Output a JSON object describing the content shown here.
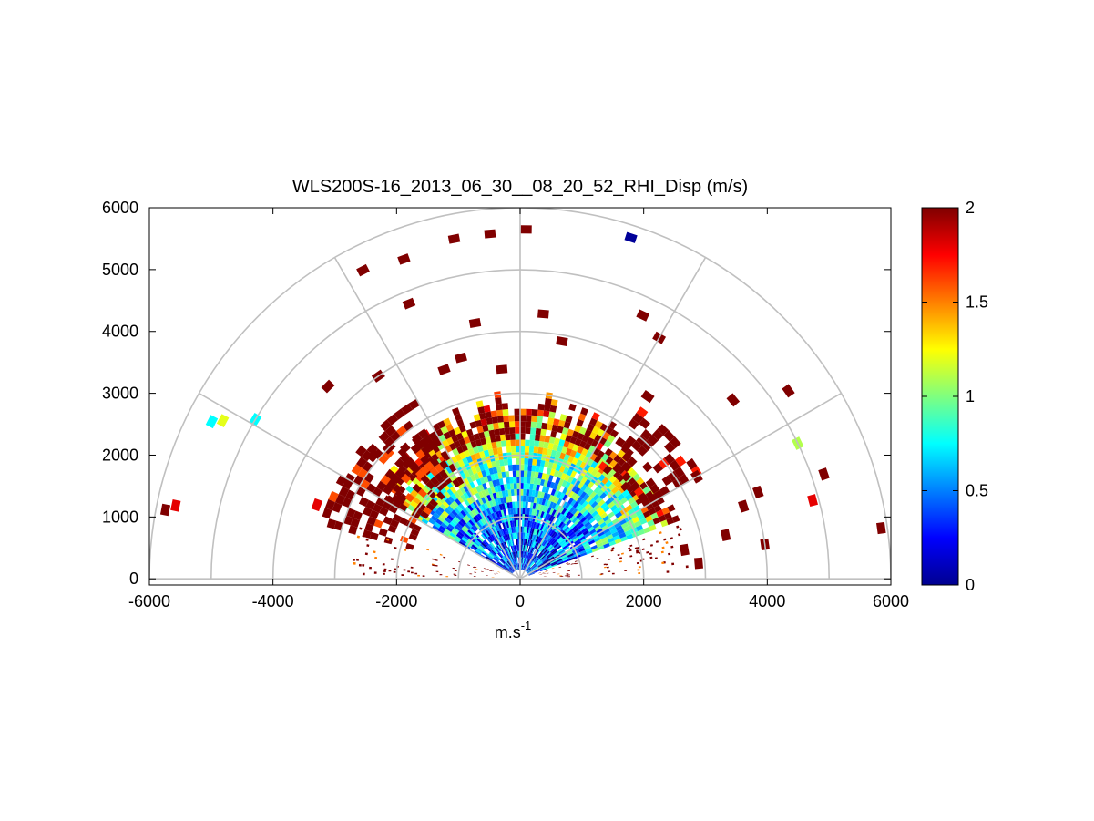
{
  "chart_data": {
    "type": "heatmap",
    "subtype": "polar-rhi",
    "title": "WLS200S-16_2013_06_30__08_20_52_RHI_Disp (m/s)",
    "xlabel": "m.s",
    "xlabel_superscript": "-1",
    "ylabel": "",
    "xlim": [
      -6000,
      6000
    ],
    "ylim": [
      -100,
      6000
    ],
    "x_ticks": [
      -6000,
      -4000,
      -2000,
      0,
      2000,
      4000,
      6000
    ],
    "x_tick_labels": [
      "-6000",
      "-4000",
      "-2000",
      "0",
      "2000",
      "4000",
      "6000"
    ],
    "y_ticks": [
      0,
      1000,
      2000,
      3000,
      4000,
      5000,
      6000
    ],
    "y_tick_labels": [
      "0",
      "1000",
      "2000",
      "3000",
      "4000",
      "5000",
      "6000"
    ],
    "polar_grid": {
      "range_rings_m": [
        1000,
        2000,
        3000,
        4000,
        5000,
        6000
      ],
      "spoke_angles_deg": [
        0,
        30,
        60,
        90,
        120,
        150,
        180
      ]
    },
    "colorbar": {
      "colormap": "jet",
      "range": [
        0,
        2
      ],
      "ticks": [
        0,
        0.5,
        1,
        1.5,
        2
      ],
      "tick_labels": [
        "0",
        "0.5",
        "1",
        "1.5",
        "2"
      ]
    },
    "sector_data": {
      "dense_range_max_m": 2800,
      "dense_elevation_span_deg": [
        20,
        150
      ],
      "value_trend": "low (0.3-0.7) near origin, rising to saturated 2.0 near outer edge"
    },
    "sparse_gates": [
      {
        "range_m": 5600,
        "elevation_deg": 101,
        "value": 2.0
      },
      {
        "range_m": 5600,
        "elevation_deg": 95,
        "value": 2.0
      },
      {
        "range_m": 5650,
        "elevation_deg": 89,
        "value": 2.0
      },
      {
        "range_m": 5800,
        "elevation_deg": 72,
        "value": 0.05
      },
      {
        "range_m": 5500,
        "elevation_deg": 110,
        "value": 2.0
      },
      {
        "range_m": 5600,
        "elevation_deg": 117,
        "value": 2.0
      },
      {
        "range_m": 5600,
        "elevation_deg": 153,
        "value": 0.75
      },
      {
        "range_m": 5450,
        "elevation_deg": 152,
        "value": 1.2
      },
      {
        "range_m": 5000,
        "elevation_deg": 149,
        "value": 0.75
      },
      {
        "range_m": 5700,
        "elevation_deg": 168,
        "value": 1.8
      },
      {
        "range_m": 5850,
        "elevation_deg": 169,
        "value": 2.0
      },
      {
        "range_m": 5000,
        "elevation_deg": 26,
        "value": 1.1
      },
      {
        "range_m": 5200,
        "elevation_deg": 19,
        "value": 2.0
      },
      {
        "range_m": 5900,
        "elevation_deg": 8,
        "value": 2.0
      },
      {
        "range_m": 4900,
        "elevation_deg": 15,
        "value": 1.8
      },
      {
        "range_m": 4700,
        "elevation_deg": 65,
        "value": 2.0
      },
      {
        "range_m": 5300,
        "elevation_deg": 35,
        "value": 2.0
      },
      {
        "range_m": 4500,
        "elevation_deg": 60,
        "value": 2.0
      },
      {
        "range_m": 4800,
        "elevation_deg": 112,
        "value": 2.0
      },
      {
        "range_m": 4400,
        "elevation_deg": 135,
        "value": 2.0
      },
      {
        "range_m": 4200,
        "elevation_deg": 100,
        "value": 2.0
      },
      {
        "range_m": 4300,
        "elevation_deg": 85,
        "value": 2.0
      },
      {
        "range_m": 3900,
        "elevation_deg": 80,
        "value": 2.0
      },
      {
        "range_m": 4000,
        "elevation_deg": 125,
        "value": 2.0
      },
      {
        "range_m": 3700,
        "elevation_deg": 105,
        "value": 2.0
      },
      {
        "range_m": 4500,
        "elevation_deg": 40,
        "value": 2.0
      },
      {
        "range_m": 4100,
        "elevation_deg": 20,
        "value": 2.0
      },
      {
        "range_m": 3800,
        "elevation_deg": 18,
        "value": 2.0
      },
      {
        "range_m": 3600,
        "elevation_deg": 55,
        "value": 2.0
      },
      {
        "range_m": 3300,
        "elevation_deg": 30,
        "value": 2.0
      },
      {
        "range_m": 3400,
        "elevation_deg": 12,
        "value": 2.0
      },
      {
        "range_m": 3200,
        "elevation_deg": 150,
        "value": 2.0
      },
      {
        "range_m": 3500,
        "elevation_deg": 160,
        "value": 1.8
      },
      {
        "range_m": 3100,
        "elevation_deg": 140,
        "value": 2.0
      },
      {
        "range_m": 3000,
        "elevation_deg": 135,
        "value": 2.0
      },
      {
        "range_m": 2900,
        "elevation_deg": 5,
        "value": 2.0
      },
      {
        "range_m": 3600,
        "elevation_deg": 110,
        "value": 2.0
      },
      {
        "range_m": 3400,
        "elevation_deg": 95,
        "value": 2.0
      },
      {
        "range_m": 2700,
        "elevation_deg": 10,
        "value": 2.0
      },
      {
        "range_m": 4000,
        "elevation_deg": 8,
        "value": 2.0
      }
    ]
  }
}
